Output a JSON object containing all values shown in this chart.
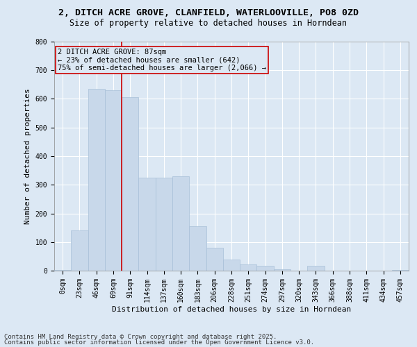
{
  "title_line1": "2, DITCH ACRE GROVE, CLANFIELD, WATERLOOVILLE, PO8 0ZD",
  "title_line2": "Size of property relative to detached houses in Horndean",
  "xlabel": "Distribution of detached houses by size in Horndean",
  "ylabel": "Number of detached properties",
  "bar_labels": [
    "0sqm",
    "23sqm",
    "46sqm",
    "69sqm",
    "91sqm",
    "114sqm",
    "137sqm",
    "160sqm",
    "183sqm",
    "206sqm",
    "228sqm",
    "251sqm",
    "274sqm",
    "297sqm",
    "320sqm",
    "343sqm",
    "366sqm",
    "388sqm",
    "411sqm",
    "434sqm",
    "457sqm"
  ],
  "bar_values": [
    2,
    140,
    635,
    630,
    605,
    325,
    325,
    330,
    155,
    80,
    40,
    22,
    18,
    5,
    0,
    18,
    0,
    0,
    0,
    0,
    2
  ],
  "bar_color": "#c8d8ea",
  "bar_edgecolor": "#a8c0d8",
  "vline_x_index": 3.5,
  "vline_color": "#cc0000",
  "annotation_text": "2 DITCH ACRE GROVE: 87sqm\n← 23% of detached houses are smaller (642)\n75% of semi-detached houses are larger (2,066) →",
  "annotation_box_edgecolor": "#cc0000",
  "annotation_box_facecolor": "#dce8f4",
  "ylim": [
    0,
    800
  ],
  "yticks": [
    0,
    100,
    200,
    300,
    400,
    500,
    600,
    700,
    800
  ],
  "background_color": "#dce8f4",
  "plot_bg_color": "#dce8f4",
  "footer_line1": "Contains HM Land Registry data © Crown copyright and database right 2025.",
  "footer_line2": "Contains public sector information licensed under the Open Government Licence v3.0.",
  "grid_color": "#ffffff",
  "title_fontsize": 9.5,
  "subtitle_fontsize": 8.5,
  "axis_label_fontsize": 8,
  "tick_fontsize": 7,
  "annotation_fontsize": 7.5,
  "footer_fontsize": 6.5
}
